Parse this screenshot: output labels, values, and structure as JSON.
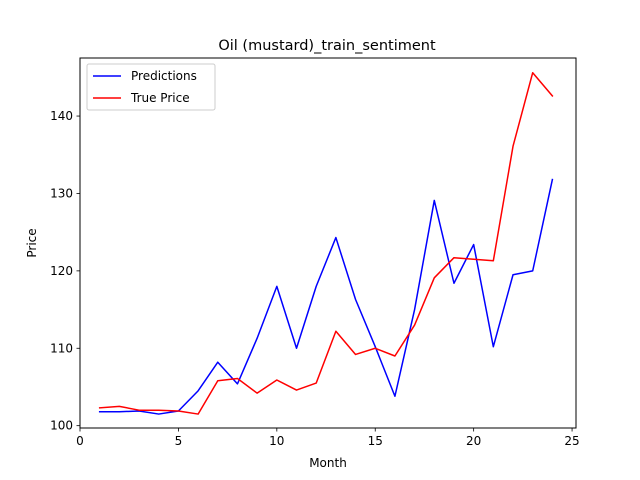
{
  "chart_data": {
    "type": "line",
    "title": "Oil (mustard)_train_sentiment",
    "xlabel": "Month",
    "ylabel": "Price",
    "xlim": [
      0,
      25.2
    ],
    "ylim": [
      99.7,
      147.5
    ],
    "xticks": [
      0,
      5,
      10,
      15,
      20,
      25
    ],
    "yticks": [
      100,
      110,
      120,
      130,
      140
    ],
    "grid": false,
    "legend_position": "top-left",
    "x": [
      1,
      2,
      3,
      4,
      5,
      6,
      7,
      8,
      9,
      10,
      11,
      12,
      13,
      14,
      15,
      16,
      17,
      18,
      19,
      20,
      21,
      22,
      23,
      24
    ],
    "series": [
      {
        "name": "Predictions",
        "color": "#0000ff",
        "values": [
          101.8,
          101.8,
          101.9,
          101.5,
          101.9,
          104.5,
          108.2,
          105.4,
          111.3,
          118.0,
          110.0,
          118.0,
          124.3,
          116.3,
          110.2,
          103.8,
          115.0,
          129.1,
          118.4,
          123.4,
          110.2,
          119.5,
          120.0,
          131.8
        ]
      },
      {
        "name": "True Price",
        "color": "#ff0000",
        "values": [
          102.3,
          102.5,
          102.0,
          102.0,
          101.9,
          101.5,
          105.8,
          106.1,
          104.2,
          105.9,
          104.6,
          105.5,
          112.2,
          109.2,
          110.0,
          109.0,
          113.0,
          119.1,
          121.7,
          121.5,
          121.3,
          136.1,
          145.6,
          142.6
        ]
      }
    ]
  }
}
